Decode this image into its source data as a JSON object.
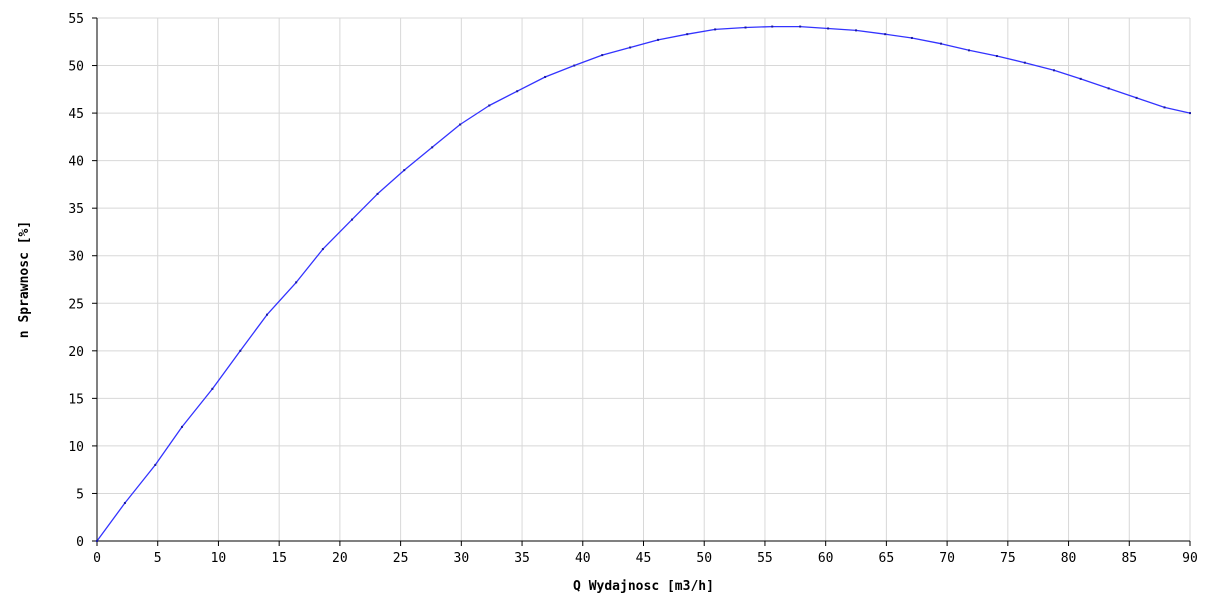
{
  "chart_data": {
    "type": "line",
    "xlabel": "Q Wydajnosc [m3/h]",
    "ylabel": "n Sprawnosc [%]",
    "xlim": [
      0,
      90
    ],
    "ylim": [
      0,
      55
    ],
    "x_ticks": [
      0,
      5,
      10,
      15,
      20,
      25,
      30,
      35,
      40,
      45,
      50,
      55,
      60,
      65,
      70,
      75,
      80,
      85,
      90
    ],
    "y_ticks": [
      0,
      5,
      10,
      15,
      20,
      25,
      30,
      35,
      40,
      45,
      50,
      55
    ],
    "grid": true,
    "series": [
      {
        "x": [
          0,
          2.3,
          4.8,
          7.0,
          9.5,
          11.8,
          14.0,
          16.4,
          18.6,
          21.0,
          23.1,
          25.3,
          27.6,
          29.9,
          32.3,
          34.6,
          36.9,
          39.3,
          41.6,
          43.9,
          46.2,
          48.6,
          50.9,
          53.4,
          55.6,
          57.9,
          60.2,
          62.5,
          64.9,
          67.1,
          69.5,
          71.8,
          74.1,
          76.4,
          78.8,
          81.0,
          83.3,
          85.6,
          87.9,
          90.0
        ],
        "y": [
          0,
          4.0,
          8.0,
          12.0,
          16.0,
          20.0,
          23.8,
          27.2,
          30.7,
          33.8,
          36.5,
          39.0,
          41.4,
          43.8,
          45.8,
          47.3,
          48.8,
          50.0,
          51.1,
          51.9,
          52.7,
          53.3,
          53.8,
          54.0,
          54.1,
          54.1,
          53.9,
          53.7,
          53.3,
          52.9,
          52.3,
          51.6,
          51.0,
          50.3,
          49.5,
          48.6,
          47.6,
          46.6,
          45.6,
          45.0
        ],
        "color": "#3333ff"
      }
    ],
    "colors": {
      "grid": "#d8d8d8",
      "axis": "#000000",
      "line": "#3333ff",
      "marker": "#1a1aa0"
    }
  }
}
